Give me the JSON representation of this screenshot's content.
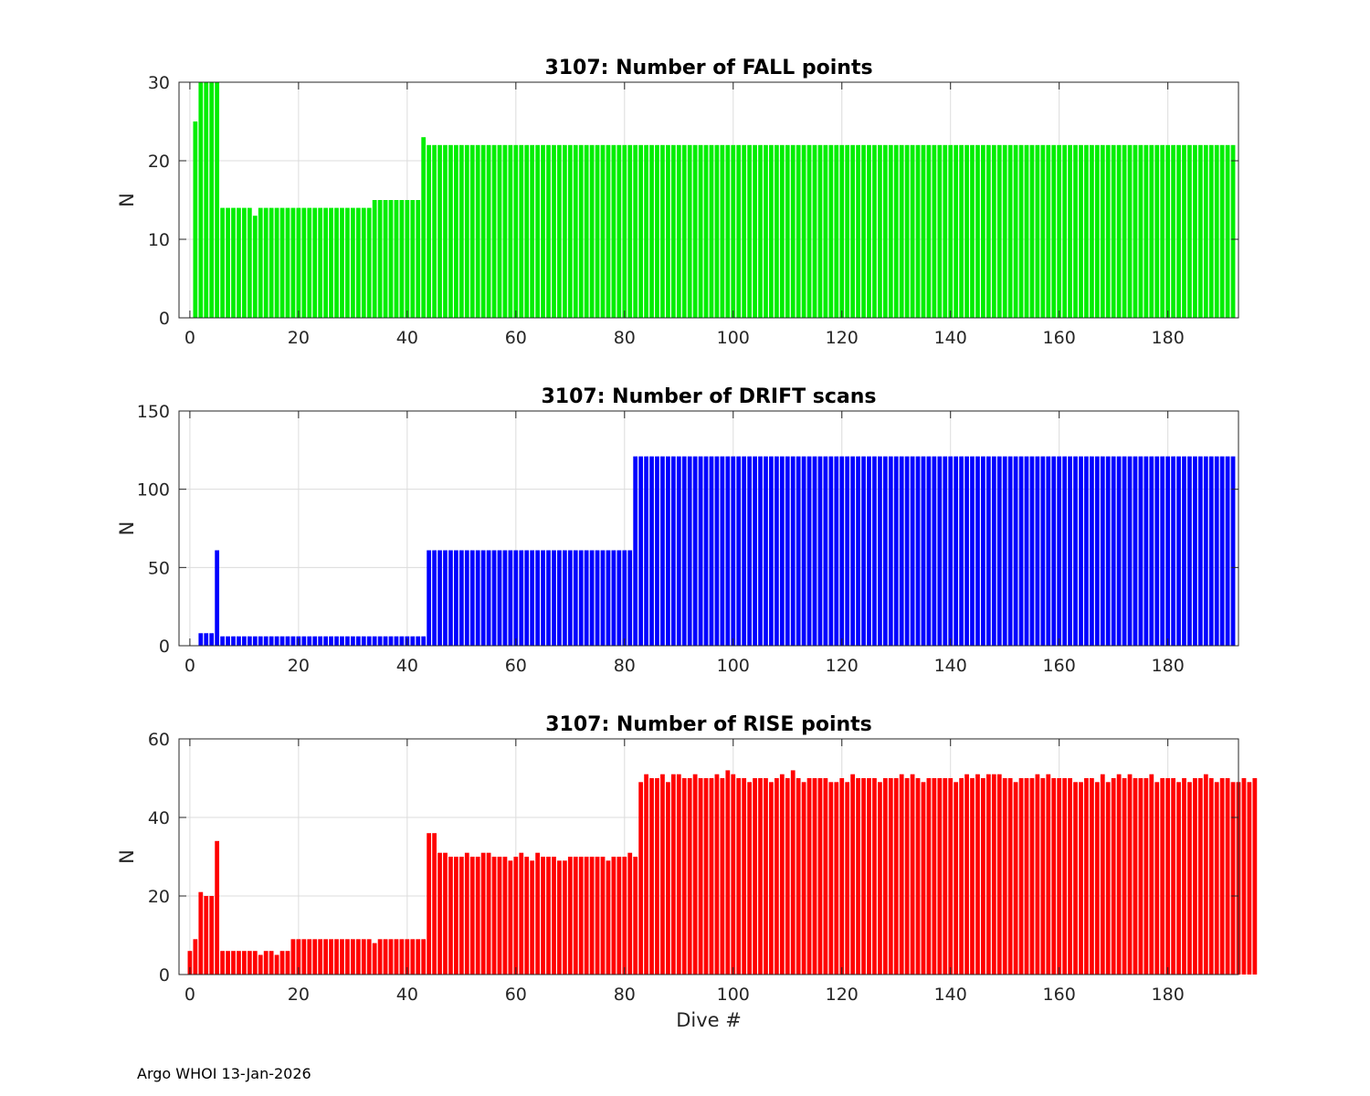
{
  "footer": "Argo WHOI 13-Jan-2026",
  "chart_data": [
    {
      "type": "bar",
      "title": "3107: Number of FALL points",
      "xlabel": "",
      "ylabel": "N",
      "color": "#00ee00",
      "xlim": [
        -2,
        193
      ],
      "ylim": [
        0,
        30
      ],
      "xticks": [
        0,
        20,
        40,
        60,
        80,
        100,
        120,
        140,
        160,
        180
      ],
      "yticks": [
        0,
        10,
        20,
        30
      ],
      "grid": true,
      "x_start": 1,
      "values": [
        25,
        30,
        30,
        30,
        30,
        14,
        14,
        14,
        14,
        14,
        14,
        13,
        14,
        14,
        14,
        14,
        14,
        14,
        14,
        14,
        14,
        14,
        14,
        14,
        14,
        14,
        14,
        14,
        14,
        14,
        14,
        14,
        14,
        15,
        15,
        15,
        15,
        15,
        15,
        15,
        15,
        15,
        23,
        22,
        22,
        22,
        22,
        22,
        22,
        22,
        22,
        22,
        22,
        22,
        22,
        22,
        22,
        22,
        22,
        22,
        22,
        22,
        22,
        22,
        22,
        22,
        22,
        22,
        22,
        22,
        22,
        22,
        22,
        22,
        22,
        22,
        22,
        22,
        22,
        22,
        22,
        22,
        22,
        22,
        22,
        22,
        22,
        22,
        22,
        22,
        22,
        22,
        22,
        22,
        22,
        22,
        22,
        22,
        22,
        22,
        22,
        22,
        22,
        22,
        22,
        22,
        22,
        22,
        22,
        22,
        22,
        22,
        22,
        22,
        22,
        22,
        22,
        22,
        22,
        22,
        22,
        22,
        22,
        22,
        22,
        22,
        22,
        22,
        22,
        22,
        22,
        22,
        22,
        22,
        22,
        22,
        22,
        22,
        22,
        22,
        22,
        22,
        22,
        22,
        22,
        22,
        22,
        22,
        22,
        22,
        22,
        22,
        22,
        22,
        22,
        22,
        22,
        22,
        22,
        22,
        22,
        22,
        22,
        22,
        22,
        22,
        22,
        22,
        22,
        22,
        22,
        22,
        22,
        22,
        22,
        22,
        22,
        22,
        22,
        22,
        22,
        22,
        22,
        22,
        22,
        22,
        22,
        22,
        22,
        22,
        22,
        22
      ]
    },
    {
      "type": "bar",
      "title": "3107: Number of DRIFT scans",
      "xlabel": "",
      "ylabel": "N",
      "color": "#0000ff",
      "xlim": [
        -2,
        193
      ],
      "ylim": [
        0,
        150
      ],
      "xticks": [
        0,
        20,
        40,
        60,
        80,
        100,
        120,
        140,
        160,
        180
      ],
      "yticks": [
        0,
        50,
        100,
        150
      ],
      "grid": true,
      "x_start": 2,
      "values": [
        8,
        8,
        8,
        61,
        6,
        6,
        6,
        6,
        6,
        6,
        6,
        6,
        6,
        6,
        6,
        6,
        6,
        6,
        6,
        6,
        6,
        6,
        6,
        6,
        6,
        6,
        6,
        6,
        6,
        6,
        6,
        6,
        6,
        6,
        6,
        6,
        6,
        6,
        6,
        6,
        6,
        6,
        61,
        61,
        61,
        61,
        61,
        61,
        61,
        61,
        61,
        61,
        61,
        61,
        61,
        61,
        61,
        61,
        61,
        61,
        61,
        61,
        61,
        61,
        61,
        61,
        61,
        61,
        61,
        61,
        61,
        61,
        61,
        61,
        61,
        61,
        61,
        61,
        61,
        61,
        121,
        121,
        121,
        121,
        121,
        121,
        121,
        121,
        121,
        121,
        121,
        121,
        121,
        121,
        121,
        121,
        121,
        121,
        121,
        121,
        121,
        121,
        121,
        121,
        121,
        121,
        121,
        121,
        121,
        121,
        121,
        121,
        121,
        121,
        121,
        121,
        121,
        121,
        121,
        121,
        121,
        121,
        121,
        121,
        121,
        121,
        121,
        121,
        121,
        121,
        121,
        121,
        121,
        121,
        121,
        121,
        121,
        121,
        121,
        121,
        121,
        121,
        121,
        121,
        121,
        121,
        121,
        121,
        121,
        121,
        121,
        121,
        121,
        121,
        121,
        121,
        121,
        121,
        121,
        121,
        121,
        121,
        121,
        121,
        121,
        121,
        121,
        121,
        121,
        121,
        121,
        121,
        121,
        121,
        121,
        121,
        121,
        121,
        121,
        121,
        121,
        121,
        121,
        121,
        121,
        121,
        121,
        121,
        121,
        121,
        121
      ]
    },
    {
      "type": "bar",
      "title": "3107: Number of RISE points",
      "xlabel": "Dive #",
      "ylabel": "N",
      "color": "#ff0000",
      "xlim": [
        -2,
        193
      ],
      "ylim": [
        0,
        60
      ],
      "xticks": [
        0,
        20,
        40,
        60,
        80,
        100,
        120,
        140,
        160,
        180
      ],
      "yticks": [
        0,
        20,
        40,
        60
      ],
      "grid": true,
      "x_start": 0,
      "values": [
        6,
        9,
        21,
        20,
        20,
        34,
        6,
        6,
        6,
        6,
        6,
        6,
        6,
        5,
        6,
        6,
        5,
        6,
        6,
        9,
        9,
        9,
        9,
        9,
        9,
        9,
        9,
        9,
        9,
        9,
        9,
        9,
        9,
        9,
        8,
        9,
        9,
        9,
        9,
        9,
        9,
        9,
        9,
        9,
        36,
        36,
        31,
        31,
        30,
        30,
        30,
        31,
        30,
        30,
        31,
        31,
        30,
        30,
        30,
        29,
        30,
        31,
        30,
        29,
        31,
        30,
        30,
        30,
        29,
        29,
        30,
        30,
        30,
        30,
        30,
        30,
        30,
        29,
        30,
        30,
        30,
        31,
        30,
        49,
        51,
        50,
        50,
        51,
        49,
        51,
        51,
        50,
        50,
        51,
        50,
        50,
        50,
        51,
        50,
        52,
        51,
        50,
        50,
        49,
        50,
        50,
        50,
        49,
        50,
        51,
        50,
        52,
        50,
        49,
        50,
        50,
        50,
        50,
        49,
        49,
        50,
        49,
        51,
        50,
        50,
        50,
        50,
        49,
        50,
        50,
        50,
        51,
        50,
        51,
        50,
        49,
        50,
        50,
        50,
        50,
        50,
        49,
        50,
        51,
        50,
        51,
        50,
        51,
        51,
        51,
        50,
        50,
        49,
        50,
        50,
        50,
        51,
        50,
        51,
        50,
        50,
        50,
        50,
        49,
        49,
        50,
        50,
        49,
        51,
        49,
        50,
        51,
        50,
        51,
        50,
        50,
        50,
        51,
        49,
        50,
        50,
        50,
        49,
        50,
        49,
        50,
        50,
        51,
        50,
        49,
        50,
        50,
        49,
        49,
        50,
        49,
        50
      ]
    }
  ]
}
